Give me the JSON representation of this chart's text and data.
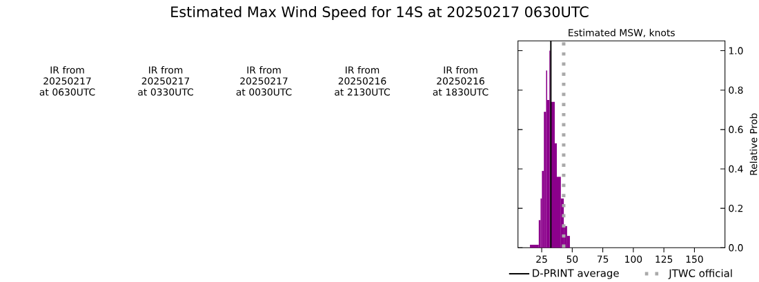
{
  "chart_data": {
    "type": "histogram",
    "title": "Estimated Max Wind Speed for 14S at 20250217 0630UTC",
    "subtitle": "Estimated MSW, knots",
    "ylabel": "Relative Prob",
    "bins": [
      15.4,
      22.6,
      24.1,
      25.2,
      26.8,
      28.6,
      29.5,
      31.3,
      32.0,
      35.7,
      37.4,
      40.7,
      43.1,
      45.8,
      48.1
    ],
    "values": [
      0.015,
      0.14,
      0.25,
      0.39,
      0.69,
      0.9,
      0.75,
      1.0,
      0.74,
      0.53,
      0.36,
      0.25,
      0.11,
      0.06
    ],
    "color": "#8b008b",
    "xlim": [
      5.6,
      175
    ],
    "xticks": [
      25,
      50,
      75,
      100,
      125,
      150
    ],
    "ylim": [
      0,
      1.05
    ],
    "yticks": [
      {
        "value": 0,
        "label": "0.0"
      },
      0.2,
      0.4,
      0.6,
      0.8,
      {
        "value": 1,
        "label": "1.0"
      }
    ],
    "ref_lines": [
      {
        "axis": "x",
        "value": 32.5,
        "label": "D-PRINT average",
        "color": "#000000",
        "line_style": "solid"
      },
      {
        "axis": "x",
        "value": 43,
        "label": "JTWC official",
        "color": "#aaaaaa",
        "line_style": "dotted"
      }
    ],
    "legend": "bottom",
    "annotations": [
      "IR from 20250217 at 0630UTC",
      "IR from 20250217 at 0330UTC",
      "IR from 20250217 at 0030UTC",
      "IR from 20250216 at 2130UTC",
      "IR from 20250216 at 1830UTC"
    ]
  }
}
